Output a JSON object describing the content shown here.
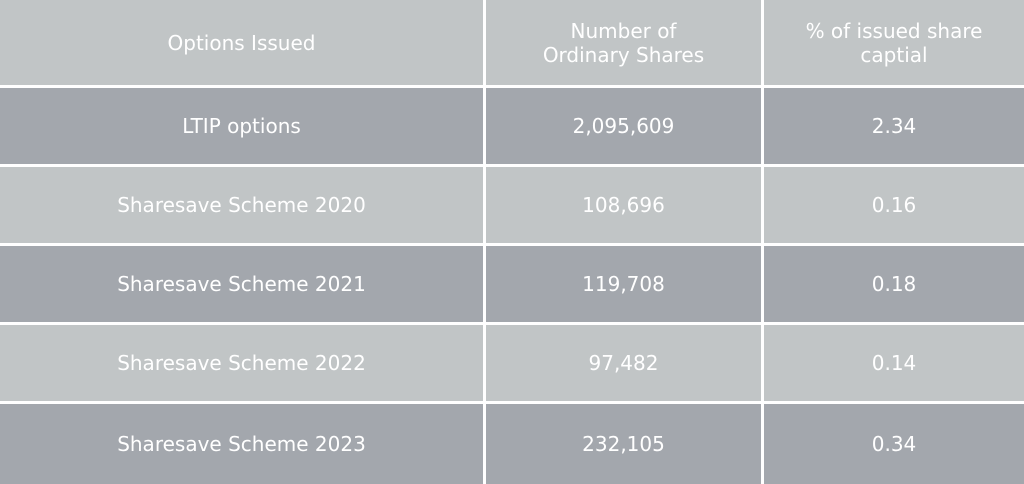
{
  "table": {
    "headers": [
      [
        "Options Issued"
      ],
      [
        "Number of",
        "Ordinary Shares"
      ],
      [
        "% of issued share",
        "captial"
      ]
    ],
    "rows": [
      {
        "name": "LTIP options",
        "shares": "2,095,609",
        "percent": "2.34",
        "shade": "dark"
      },
      {
        "name": "Sharesave Scheme 2020",
        "shares": "108,696",
        "percent": "0.16",
        "shade": "light"
      },
      {
        "name": "Sharesave Scheme 2021",
        "shares": "119,708",
        "percent": "0.18",
        "shade": "dark"
      },
      {
        "name": "Sharesave Scheme 2022",
        "shares": "97,482",
        "percent": "0.14",
        "shade": "light"
      },
      {
        "name": "Sharesave Scheme 2023",
        "shares": "232,105",
        "percent": "0.34",
        "shade": "dark"
      }
    ],
    "colors": {
      "light": "#c1c5c6",
      "dark": "#a3a7ad",
      "text": "#ffffff",
      "divider": "#ffffff"
    }
  }
}
